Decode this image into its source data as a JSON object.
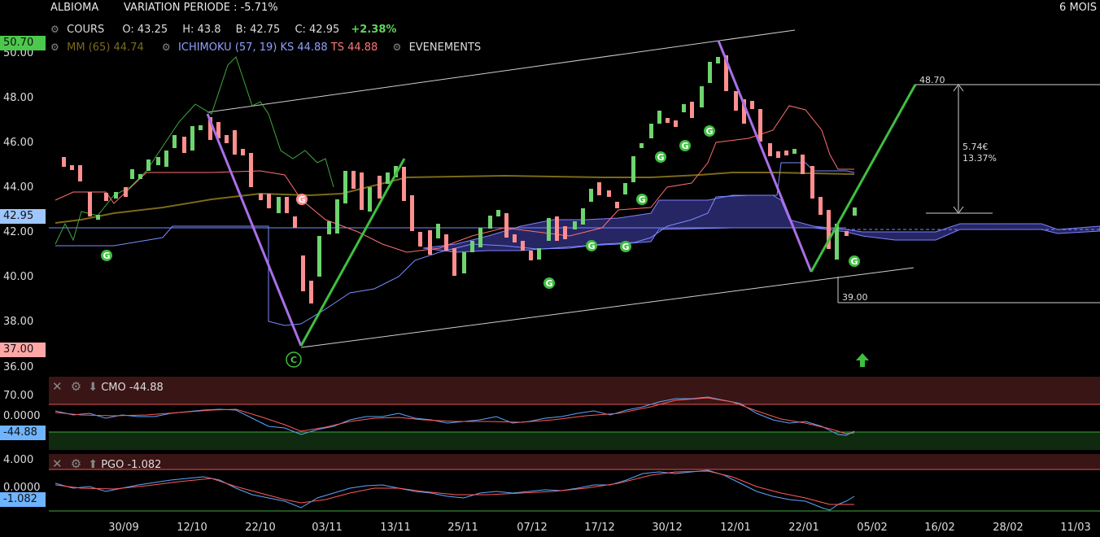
{
  "header": {
    "ticker": "ALBIOMA",
    "variation": "VARIATION PERIODE : -5.71%",
    "period": "6 MOIS"
  },
  "legend": {
    "cours_label": "COURS",
    "open": "O: 43.25",
    "high": "H: 43.8",
    "low": "B: 42.75",
    "close": "C: 42.95",
    "change": "+2.38%",
    "mm": "MM (65) 44.74",
    "ichimoku": "ICHIMOKU (57, 19)",
    "ks": "KS 44.88",
    "ts": "TS 44.88",
    "events": "EVENEMENTS"
  },
  "price_axis": {
    "ticks": [
      "50.00",
      "48.00",
      "46.00",
      "44.00",
      "42.00",
      "40.00",
      "38.00",
      "36.00"
    ],
    "tag_high": "50.70",
    "tag_current": "42.95",
    "tag_low": "37.00"
  },
  "annotations": {
    "target_price": "48.70",
    "target_gain_abs": "5.74€",
    "target_gain_pct": "13.37%",
    "support_price": "39.00"
  },
  "cmo": {
    "label": "CMO",
    "value": "-44.88",
    "ticks": [
      "70.00",
      "0.0000"
    ],
    "tag": "-44.88"
  },
  "pgo": {
    "label": "PGO",
    "value": "-1.082",
    "ticks": [
      "4.000",
      "0.0000"
    ],
    "tag": "-1.082"
  },
  "x_axis": [
    "30/09",
    "12/10",
    "22/10",
    "03/11",
    "13/11",
    "25/11",
    "07/12",
    "17/12",
    "30/12",
    "12/01",
    "22/01",
    "05/02",
    "16/02",
    "28/02",
    "11/03"
  ],
  "colors": {
    "up": "#7ee07e",
    "down": "#f08b8b",
    "green_line": "#3fbf3f",
    "purple_line": "#a970e8",
    "mm": "#7a6a1a",
    "kijun": "#7a8cff",
    "tenkan": "#ff6f6f",
    "cloud": "#3a3a9a"
  },
  "chart_data": {
    "type": "line",
    "title": "ALBIOMA",
    "x": [
      "30/09",
      "12/10",
      "22/10",
      "03/11",
      "13/11",
      "25/11",
      "07/12",
      "17/12",
      "30/12",
      "12/01",
      "22/01",
      "05/02"
    ],
    "series": [
      {
        "name": "COURS",
        "values": [
          44.5,
          46.5,
          44.0,
          40.5,
          44.5,
          41.0,
          41.8,
          43.5,
          46.5,
          47.5,
          43.0,
          42.95
        ]
      },
      {
        "name": "MM (65)",
        "values": [
          42.6,
          43.2,
          43.8,
          43.6,
          44.4,
          44.6,
          44.3,
          44.4,
          44.5,
          44.9,
          44.8,
          44.74
        ]
      }
    ],
    "ylim": [
      36,
      51
    ]
  }
}
